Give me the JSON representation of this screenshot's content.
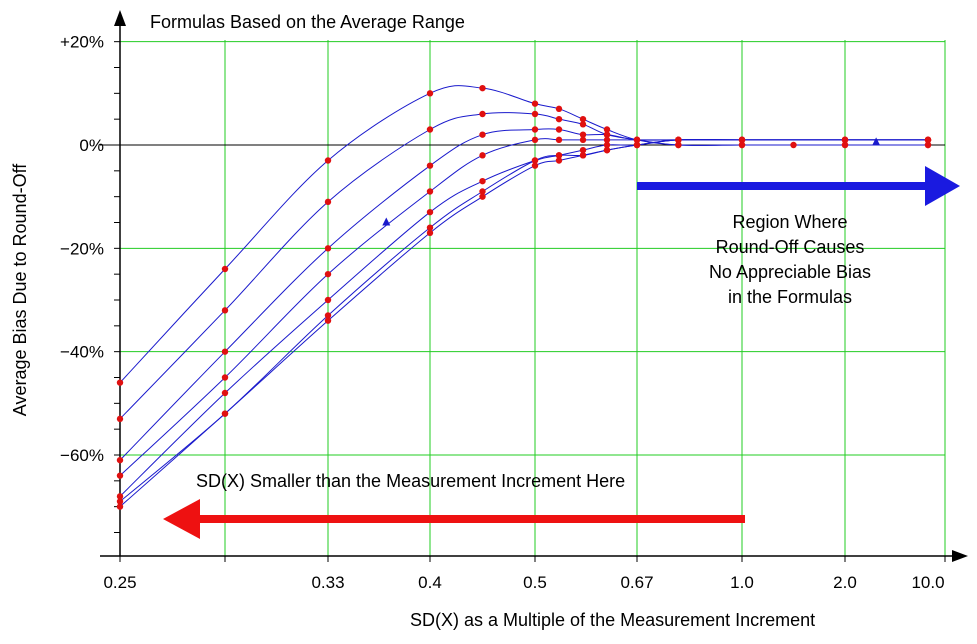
{
  "chart_data": {
    "type": "line",
    "title": "Formulas Based on the Average Range",
    "xlabel": "SD(X) as a Multiple of the Measurement Increment",
    "ylabel": "Average Bias Due to Round-Off",
    "x_categories": [
      "0.25",
      "0.33",
      "0.4",
      "0.5",
      "0.67",
      "1.0",
      "2.0",
      "10.0"
    ],
    "y_ticks": [
      {
        "value": 20,
        "label": "+20%"
      },
      {
        "value": 0,
        "label": "0%"
      },
      {
        "value": -20,
        "label": "−20%"
      },
      {
        "value": -40,
        "label": "−40%"
      },
      {
        "value": -60,
        "label": "−60%"
      }
    ],
    "ylim": [
      -80,
      20
    ],
    "grid": true,
    "annotations": {
      "right_region": [
        "Region Where",
        "Round-Off Causes",
        "No Appreciable Bias",
        "in the Formulas"
      ],
      "left_region": "SD(X) Smaller than the Measurement Increment Here"
    },
    "colors": {
      "grid": "#22cc22",
      "curve": "#1a1acc",
      "point": "#e01010",
      "marker": "#1a1acc",
      "right_arrow": "#1a1ae0",
      "left_arrow": "#ee1111",
      "axis": "#000000"
    },
    "series": [
      {
        "points": [
          [
            0.25,
            -46
          ],
          [
            0.29,
            -24
          ],
          [
            0.33,
            -3
          ],
          [
            0.4,
            10
          ],
          [
            0.45,
            11
          ],
          [
            0.5,
            8
          ],
          [
            0.54,
            7
          ],
          [
            0.58,
            5
          ],
          [
            0.62,
            3
          ],
          [
            0.67,
            1
          ],
          [
            0.8,
            0
          ],
          [
            1.0,
            0
          ],
          [
            1.5,
            0
          ],
          [
            2.0,
            0
          ],
          [
            10.0,
            0
          ]
        ]
      },
      {
        "points": [
          [
            0.25,
            -53
          ],
          [
            0.29,
            -32
          ],
          [
            0.33,
            -11
          ],
          [
            0.4,
            3
          ],
          [
            0.45,
            6
          ],
          [
            0.5,
            6
          ],
          [
            0.54,
            5
          ],
          [
            0.58,
            4
          ],
          [
            0.62,
            2
          ],
          [
            0.67,
            1
          ],
          [
            0.8,
            0
          ],
          [
            1.0,
            0
          ],
          [
            2.0,
            0
          ],
          [
            10.0,
            0
          ]
        ]
      },
      {
        "points": [
          [
            0.25,
            -61
          ],
          [
            0.29,
            -40
          ],
          [
            0.33,
            -20
          ],
          [
            0.4,
            -4
          ],
          [
            0.45,
            2
          ],
          [
            0.5,
            3
          ],
          [
            0.54,
            3
          ],
          [
            0.58,
            2
          ],
          [
            0.62,
            2
          ],
          [
            0.67,
            1
          ],
          [
            0.8,
            1
          ],
          [
            1.0,
            1
          ],
          [
            2.0,
            1
          ],
          [
            10.0,
            1
          ]
        ]
      },
      {
        "points": [
          [
            0.25,
            -64
          ],
          [
            0.29,
            -45
          ],
          [
            0.33,
            -25
          ],
          [
            0.4,
            -9
          ],
          [
            0.45,
            -2
          ],
          [
            0.5,
            1
          ],
          [
            0.54,
            1
          ],
          [
            0.58,
            1
          ],
          [
            0.62,
            1
          ],
          [
            0.67,
            1
          ],
          [
            0.8,
            1
          ],
          [
            1.0,
            1
          ],
          [
            2.0,
            1
          ],
          [
            10.0,
            1
          ]
        ]
      },
      {
        "points": [
          [
            0.25,
            -68
          ],
          [
            0.29,
            -48
          ],
          [
            0.33,
            -30
          ],
          [
            0.4,
            -13
          ],
          [
            0.45,
            -7
          ],
          [
            0.5,
            -3
          ],
          [
            0.54,
            -2
          ],
          [
            0.58,
            -1
          ],
          [
            0.62,
            0
          ],
          [
            0.67,
            0
          ],
          [
            0.8,
            1
          ],
          [
            1.0,
            1
          ],
          [
            2.0,
            1
          ],
          [
            10.0,
            1
          ]
        ]
      },
      {
        "points": [
          [
            0.25,
            -69
          ],
          [
            0.29,
            -52
          ],
          [
            0.33,
            -33
          ],
          [
            0.4,
            -16
          ],
          [
            0.45,
            -9
          ],
          [
            0.5,
            -3
          ],
          [
            0.54,
            -2
          ],
          [
            0.58,
            -2
          ],
          [
            0.62,
            -1
          ],
          [
            0.67,
            0
          ],
          [
            0.8,
            1
          ],
          [
            1.0,
            1
          ],
          [
            2.0,
            1
          ],
          [
            10.0,
            1
          ]
        ]
      },
      {
        "points": [
          [
            0.25,
            -70
          ],
          [
            0.29,
            -52
          ],
          [
            0.33,
            -34
          ],
          [
            0.4,
            -17
          ],
          [
            0.45,
            -10
          ],
          [
            0.5,
            -4
          ],
          [
            0.54,
            -3
          ],
          [
            0.58,
            -2
          ],
          [
            0.62,
            -1
          ],
          [
            0.67,
            0
          ],
          [
            0.8,
            1
          ],
          [
            1.0,
            1
          ],
          [
            2.0,
            1
          ],
          [
            10.0,
            1
          ]
        ]
      }
    ],
    "triangle_markers": [
      [
        0.37,
        -15
      ],
      [
        5.0,
        0.5
      ]
    ]
  }
}
